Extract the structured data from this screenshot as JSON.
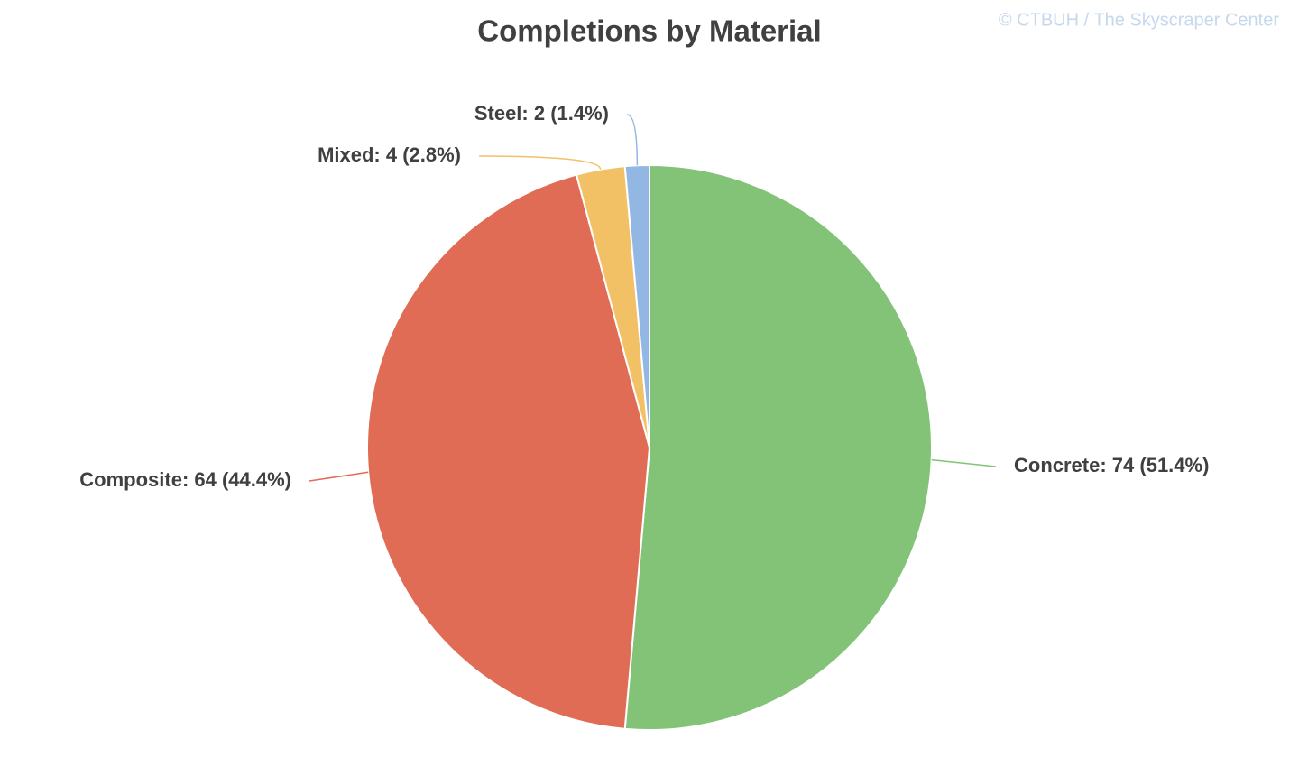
{
  "chart_data": {
    "type": "pie",
    "title": "Completions by Material",
    "source": "© CTBUH / The Skyscraper Center",
    "categories": [
      "Concrete",
      "Composite",
      "Mixed",
      "Steel"
    ],
    "values": [
      74,
      64,
      4,
      2
    ],
    "value_labels": [
      "Concrete: 74 (51.4%)",
      "Composite: 64 (44.4%)",
      "Mixed: 4 (2.8%)",
      "Steel: 2 (1.4%)"
    ],
    "colors": [
      "#82c378",
      "#e06c56",
      "#f2c166",
      "#93b7e3"
    ]
  }
}
